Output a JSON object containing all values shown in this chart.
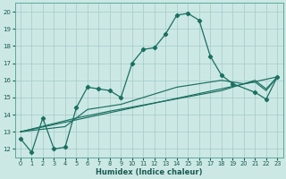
{
  "xlabel": "Humidex (Indice chaleur)",
  "xlim": [
    -0.5,
    23.5
  ],
  "ylim": [
    11.5,
    20.5
  ],
  "yticks": [
    12,
    13,
    14,
    15,
    16,
    17,
    18,
    19,
    20
  ],
  "xticks": [
    0,
    1,
    2,
    3,
    4,
    5,
    6,
    7,
    8,
    9,
    10,
    11,
    12,
    13,
    14,
    15,
    16,
    17,
    18,
    19,
    20,
    21,
    22,
    23
  ],
  "bg_color": "#cce8e5",
  "grid_color": "#aacfcc",
  "line_color": "#1a7060",
  "main_line": {
    "x": [
      0,
      1,
      2,
      3,
      4,
      5,
      6,
      7,
      8,
      9,
      10,
      11,
      12,
      13,
      14,
      15,
      16,
      17,
      18,
      19,
      21,
      22,
      23
    ],
    "y": [
      12.6,
      11.8,
      13.8,
      12.0,
      12.1,
      14.4,
      15.6,
      15.5,
      15.4,
      15.0,
      17.0,
      17.8,
      17.9,
      18.7,
      19.8,
      19.9,
      19.5,
      17.4,
      16.3,
      15.8,
      15.3,
      14.9,
      16.2
    ]
  },
  "line_straight1": {
    "x": [
      0,
      23
    ],
    "y": [
      13.0,
      16.2
    ]
  },
  "line_straight2": {
    "x": [
      0,
      5,
      8,
      13,
      18,
      20,
      21,
      22,
      23
    ],
    "y": [
      13.0,
      13.8,
      14.2,
      14.8,
      15.4,
      15.8,
      16.0,
      15.5,
      16.2
    ]
  },
  "line_medium": {
    "x": [
      0,
      4,
      5,
      6,
      7,
      8,
      9,
      10,
      11,
      12,
      13,
      14,
      15,
      16,
      17,
      18,
      19,
      20,
      21,
      22,
      23
    ],
    "y": [
      13.0,
      13.3,
      13.8,
      14.3,
      14.4,
      14.5,
      14.6,
      14.8,
      15.0,
      15.2,
      15.4,
      15.6,
      15.7,
      15.8,
      15.9,
      16.0,
      15.9,
      15.8,
      15.9,
      15.4,
      16.2
    ]
  }
}
